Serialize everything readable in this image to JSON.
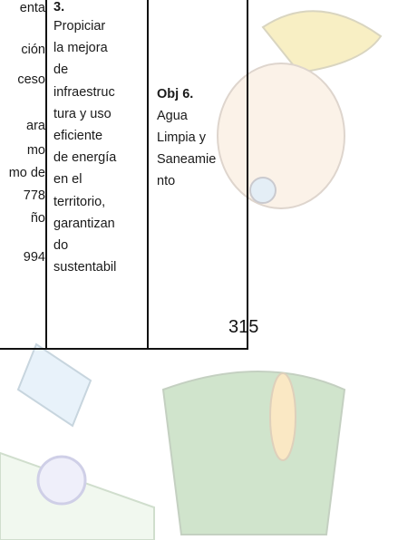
{
  "table": {
    "cells": [
      {
        "lines": [
          "enta",
          "ción",
          "ceso",
          "ara",
          "mo",
          "mo de",
          "778",
          "ño",
          "994"
        ]
      },
      {
        "heading": "3.",
        "lines": [
          "Propiciar",
          "la mejora",
          "de",
          "infraestruc",
          "tura y uso",
          "eficiente",
          "de energía",
          "en el",
          "territorio,",
          "garantizan",
          "do",
          "sustentabil"
        ]
      },
      {
        "heading": "Obj 6.",
        "lines": [
          "Agua",
          "Limpia y",
          "Saneamie",
          "nto"
        ]
      }
    ]
  },
  "page_number": "315"
}
